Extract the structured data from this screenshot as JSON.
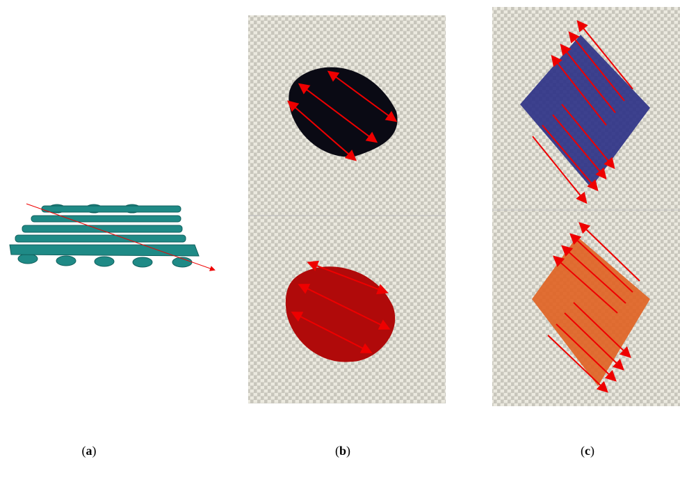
{
  "panels": [
    {
      "open": "(",
      "letter": "a",
      "close": ")"
    },
    {
      "open": "(",
      "letter": "b",
      "close": ")"
    },
    {
      "open": "(",
      "letter": "c",
      "close": ")"
    }
  ]
}
